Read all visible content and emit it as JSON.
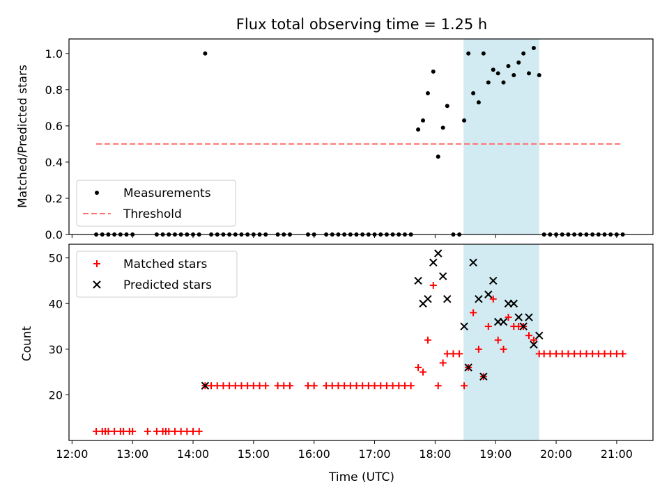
{
  "colors": {
    "measurement": "#000000",
    "threshold": "#ff7070",
    "matched": "#ff0000",
    "predicted": "#000000",
    "shade": "#add8e6"
  },
  "chart_data": [
    {
      "type": "scatter",
      "title": "Flux total observing time = 1.25 h",
      "xlabel": "",
      "ylabel": "Matched/Predicted stars",
      "xlim": [
        11.95,
        21.6
      ],
      "ylim": [
        0.0,
        1.08
      ],
      "yticks": [
        0.0,
        0.2,
        0.4,
        0.6,
        0.8,
        1.0
      ],
      "ytick_labels": [
        "0.0",
        "0.2",
        "0.4",
        "0.6",
        "0.8",
        "1.0"
      ],
      "shaded_span": [
        18.47,
        19.72
      ],
      "legend_position": "lower-left",
      "series": [
        {
          "name": "Measurements",
          "marker": "dot",
          "x": [
            12.4,
            12.5,
            12.6,
            12.7,
            12.8,
            12.9,
            13.0,
            13.4,
            13.5,
            13.6,
            13.7,
            13.8,
            13.9,
            14.0,
            14.1,
            14.2,
            14.3,
            14.4,
            14.5,
            14.6,
            14.7,
            14.8,
            14.9,
            15.0,
            15.1,
            15.2,
            15.4,
            15.5,
            15.6,
            15.9,
            16.0,
            16.2,
            16.3,
            16.4,
            16.5,
            16.6,
            16.7,
            16.8,
            16.9,
            17.0,
            17.1,
            17.2,
            17.3,
            17.4,
            17.5,
            17.6,
            17.72,
            17.8,
            17.88,
            17.97,
            18.05,
            18.13,
            18.2,
            18.3,
            18.4,
            18.48,
            18.55,
            18.63,
            18.72,
            18.8,
            18.88,
            18.96,
            19.04,
            19.13,
            19.21,
            19.3,
            19.38,
            19.46,
            19.55,
            19.63,
            19.72,
            19.8,
            19.9,
            20.0,
            20.1,
            20.2,
            20.3,
            20.4,
            20.5,
            20.6,
            20.7,
            20.8,
            20.9,
            21.0,
            21.1
          ],
          "y": [
            0,
            0,
            0,
            0,
            0,
            0,
            0,
            0,
            0,
            0,
            0,
            0,
            0,
            0,
            0,
            1.0,
            0,
            0,
            0,
            0,
            0,
            0,
            0,
            0,
            0,
            0,
            0,
            0,
            0,
            0,
            0,
            0,
            0,
            0,
            0,
            0,
            0,
            0,
            0,
            0,
            0,
            0,
            0,
            0,
            0,
            0,
            0.58,
            0.63,
            0.78,
            0.9,
            0.43,
            0.59,
            0.71,
            0,
            0,
            0.63,
            1.0,
            0.78,
            0.73,
            1.0,
            0.84,
            0.91,
            0.89,
            0.84,
            0.93,
            0.88,
            0.95,
            1.0,
            0.89,
            1.03,
            0.88,
            0,
            0,
            0,
            0,
            0,
            0,
            0,
            0,
            0,
            0,
            0,
            0,
            0,
            0
          ]
        },
        {
          "name": "Threshold",
          "marker": "dashed-line",
          "x": [
            12.4,
            21.1
          ],
          "y": [
            0.5,
            0.5
          ]
        }
      ]
    },
    {
      "type": "scatter",
      "title": "",
      "xlabel": "Time (UTC)",
      "ylabel": "Count",
      "xlim": [
        11.95,
        21.6
      ],
      "ylim": [
        10.0,
        53.0
      ],
      "yticks": [
        20,
        30,
        40,
        50
      ],
      "ytick_labels": [
        "20",
        "30",
        "40",
        "50"
      ],
      "xticks": [
        12,
        13,
        14,
        15,
        16,
        17,
        18,
        19,
        20,
        21
      ],
      "xtick_labels": [
        "12:00",
        "13:00",
        "14:00",
        "15:00",
        "16:00",
        "17:00",
        "18:00",
        "19:00",
        "20:00",
        "21:00"
      ],
      "shaded_span": [
        18.47,
        19.72
      ],
      "legend_position": "upper-left",
      "series": [
        {
          "name": "Matched stars",
          "marker": "plus",
          "x": [
            12.4,
            12.5,
            12.55,
            12.6,
            12.7,
            12.8,
            12.85,
            12.95,
            13.0,
            13.25,
            13.4,
            13.5,
            13.55,
            13.6,
            13.7,
            13.8,
            13.9,
            14.0,
            14.1,
            14.2,
            14.3,
            14.4,
            14.5,
            14.6,
            14.7,
            14.8,
            14.9,
            15.0,
            15.1,
            15.2,
            15.4,
            15.5,
            15.6,
            15.9,
            16.0,
            16.2,
            16.3,
            16.4,
            16.5,
            16.6,
            16.7,
            16.8,
            16.9,
            17.0,
            17.1,
            17.2,
            17.3,
            17.4,
            17.5,
            17.6,
            17.72,
            17.8,
            17.88,
            17.97,
            18.05,
            18.13,
            18.2,
            18.3,
            18.4,
            18.48,
            18.55,
            18.63,
            18.72,
            18.8,
            18.88,
            18.96,
            19.04,
            19.13,
            19.21,
            19.3,
            19.38,
            19.46,
            19.55,
            19.63,
            19.72,
            19.8,
            19.9,
            20.0,
            20.1,
            20.2,
            20.3,
            20.4,
            20.5,
            20.6,
            20.7,
            20.8,
            20.9,
            21.0,
            21.1
          ],
          "y": [
            12,
            12,
            12,
            12,
            12,
            12,
            12,
            12,
            12,
            12,
            12,
            12,
            12,
            12,
            12,
            12,
            12,
            12,
            12,
            22,
            22,
            22,
            22,
            22,
            22,
            22,
            22,
            22,
            22,
            22,
            22,
            22,
            22,
            22,
            22,
            22,
            22,
            22,
            22,
            22,
            22,
            22,
            22,
            22,
            22,
            22,
            22,
            22,
            22,
            22,
            26,
            25,
            32,
            44,
            22,
            27,
            29,
            29,
            29,
            22,
            26,
            38,
            30,
            24,
            35,
            41,
            32,
            30,
            37,
            35,
            35,
            35,
            33,
            32,
            29,
            29,
            29,
            29,
            29,
            29,
            29,
            29,
            29,
            29,
            29,
            29,
            29,
            29,
            29
          ]
        },
        {
          "name": "Predicted stars",
          "marker": "x",
          "x": [
            14.2,
            17.72,
            17.8,
            17.88,
            17.97,
            18.05,
            18.13,
            18.2,
            18.48,
            18.55,
            18.63,
            18.72,
            18.8,
            18.88,
            18.96,
            19.04,
            19.13,
            19.21,
            19.3,
            19.38,
            19.46,
            19.55,
            19.63,
            19.72
          ],
          "y": [
            22,
            45,
            40,
            41,
            49,
            51,
            46,
            41,
            35,
            26,
            49,
            41,
            24,
            42,
            45,
            36,
            36,
            40,
            40,
            37,
            35,
            37,
            31,
            33
          ]
        }
      ]
    }
  ]
}
